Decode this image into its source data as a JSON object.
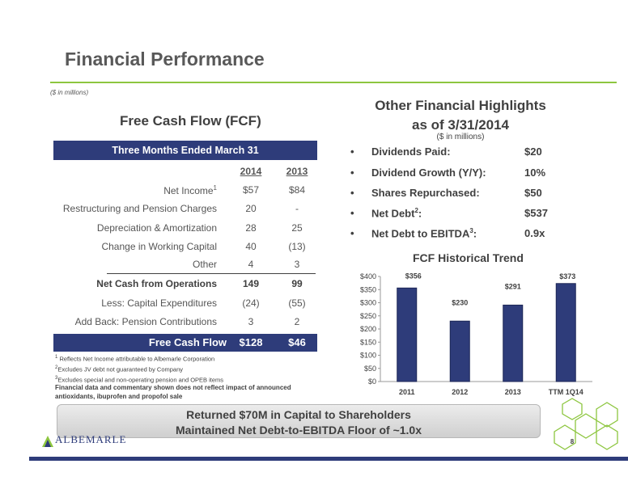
{
  "header": {
    "title": "Financial Performance",
    "subnote": "($ in millions)"
  },
  "fcf_table": {
    "heading": "Free Cash Flow (FCF)",
    "band_label": "Three Months Ended March 31",
    "col_2014": "2014",
    "col_2013": "2013",
    "rows": [
      {
        "label": "Net Income",
        "sup": "1",
        "v2014": "$57",
        "v2013": "$84"
      },
      {
        "label": "Restructuring and Pension Charges",
        "v2014": "20",
        "v2013": "-"
      },
      {
        "label": "Depreciation & Amortization",
        "v2014": "28",
        "v2013": "25"
      },
      {
        "label": "Change in Working Capital",
        "v2014": "40",
        "v2013": "(13)"
      },
      {
        "label": "Other",
        "v2014": "4",
        "v2013": "3"
      },
      {
        "label": "Net Cash from Operations",
        "v2014": "149",
        "v2013": "99"
      },
      {
        "label": "Less: Capital Expenditures",
        "v2014": "(24)",
        "v2013": "(55)"
      },
      {
        "label": "Add Back: Pension Contributions",
        "v2014": "3",
        "v2013": "2"
      }
    ],
    "total": {
      "label": "Free Cash Flow",
      "v2014": "$128",
      "v2013": "$46"
    }
  },
  "footnotes": [
    {
      "num": "1",
      "text": "Reflects Net Income attributable to Albemarle Corporation"
    },
    {
      "num": "2",
      "text": "Excludes JV debt not guaranteed by Company"
    },
    {
      "num": "3",
      "text": "Excludes special and non-operating pension and OPEB items"
    }
  ],
  "disclaimer": "Financial data and commentary shown does not reflect impact of announced antioxidants, ibuprofen and propofol sale",
  "highlights": {
    "title_line1": "Other Financial Highlights",
    "title_line2": "as of 3/31/2014",
    "subtitle": "($ in millions)",
    "items": [
      {
        "label": "Dividends Paid:",
        "value": "$20"
      },
      {
        "label": "Dividend Growth (Y/Y):",
        "value": "10%"
      },
      {
        "label": "Shares Repurchased:",
        "value": "$50"
      },
      {
        "label": "Net Debt",
        "sup": "2",
        "suffix": ":",
        "value": "$537"
      },
      {
        "label": "Net Debt to EBITDA",
        "sup": "3",
        "suffix": ":",
        "value": "0.9x"
      }
    ]
  },
  "chart_data": {
    "type": "bar",
    "title": "FCF Historical Trend",
    "categories": [
      "2011",
      "2012",
      "2013",
      "TTM 1Q14"
    ],
    "values": [
      356,
      230,
      291,
      373
    ],
    "value_labels": [
      "$356",
      "$230",
      "$291",
      "$373"
    ],
    "ylim": [
      0,
      400
    ],
    "yticks": [
      "$0",
      "$50",
      "$100",
      "$150",
      "$200",
      "$250",
      "$300",
      "$350",
      "$400"
    ],
    "bar_color": "#2e3c7a",
    "grid": false
  },
  "callout": {
    "line1": "Returned $70M in Capital to Shareholders",
    "line2": "Maintained Net Debt-to-EBITDA Floor of ~1.0x"
  },
  "brand": {
    "logo_text": "ALBEMARLE",
    "accent": "#8dc63f",
    "navy": "#2e3c7a"
  },
  "page_number": "8"
}
